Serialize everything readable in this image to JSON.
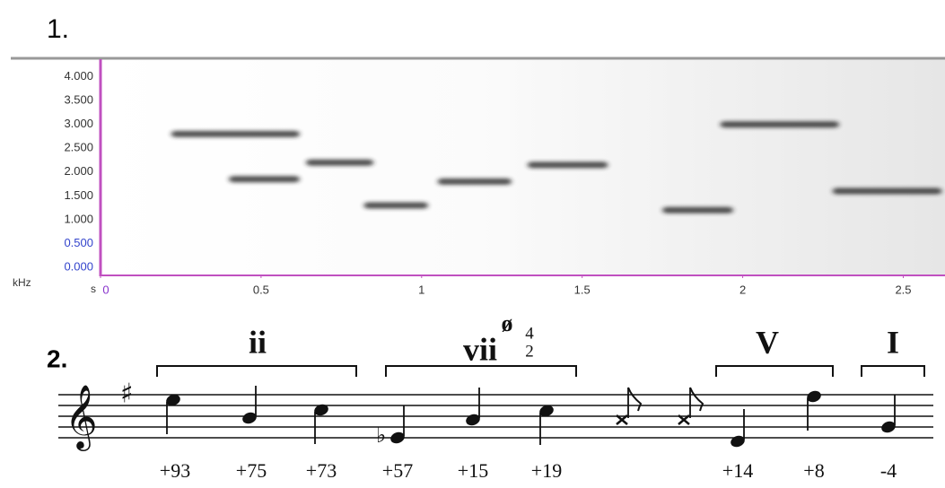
{
  "figure": {
    "panel1": {
      "label": "1.",
      "spectrogram": {
        "y_unit": "kHz",
        "x_unit": "s",
        "xlim": [
          0,
          2.63
        ],
        "ylim": [
          -0.17,
          4.37
        ],
        "xticks": [
          0,
          0.5,
          1,
          1.5,
          2,
          2.5
        ],
        "yticks": [
          {
            "value": 0,
            "label": "0.000"
          },
          {
            "value": 0.5,
            "label": "0.500"
          },
          {
            "value": 1,
            "label": "1.000"
          },
          {
            "value": 1.5,
            "label": "1.500"
          },
          {
            "value": 2,
            "label": "2.000"
          },
          {
            "value": 2.5,
            "label": "2.500"
          },
          {
            "value": 3,
            "label": "3.000"
          },
          {
            "value": 3.5,
            "label": "3.500"
          },
          {
            "value": 4,
            "label": "4.000"
          }
        ],
        "traces": [
          {
            "start": 0.22,
            "end": 0.62,
            "freq": 2.8
          },
          {
            "start": 0.4,
            "end": 0.62,
            "freq": 1.85
          },
          {
            "start": 0.64,
            "end": 0.85,
            "freq": 2.2
          },
          {
            "start": 0.82,
            "end": 1.02,
            "freq": 1.3
          },
          {
            "start": 1.05,
            "end": 1.28,
            "freq": 1.8
          },
          {
            "start": 1.33,
            "end": 1.58,
            "freq": 2.15
          },
          {
            "start": 1.75,
            "end": 1.97,
            "freq": 1.2
          },
          {
            "start": 1.93,
            "end": 2.3,
            "freq": 3.0
          },
          {
            "start": 2.28,
            "end": 2.62,
            "freq": 1.6
          }
        ]
      }
    },
    "panel2": {
      "label": "2.",
      "chords": [
        {
          "numeral": "ii"
        },
        {
          "numeral": "vii",
          "quality": "ø",
          "figures": [
            "4",
            "2"
          ]
        },
        {
          "numeral": "V"
        },
        {
          "numeral": "I"
        }
      ],
      "cents": [
        "+93",
        "+75",
        "+73",
        "+57",
        "+15",
        "+19",
        "+14",
        "+8",
        "-4"
      ]
    }
  }
}
